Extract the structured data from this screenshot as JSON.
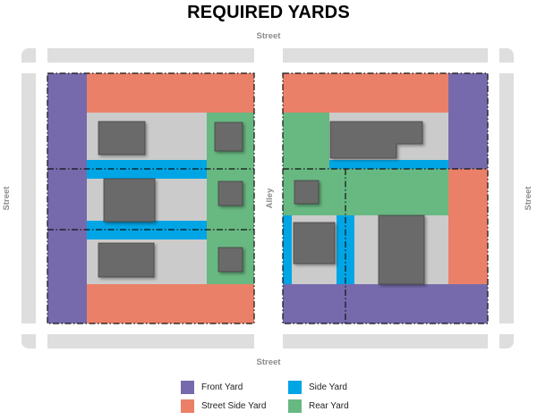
{
  "title": "REQUIRED YARDS",
  "labels": {
    "street_top": "Street",
    "street_bottom": "Street",
    "street_left": "Street",
    "street_right": "Street",
    "alley": "Alley"
  },
  "colors": {
    "front_yard": "#766aac",
    "street_side_yard": "#ea8068",
    "side_yard": "#00a5e6",
    "rear_yard": "#68b882",
    "lot_gray": "#cbcbcb",
    "building": "#6a6a6a",
    "street": "#dedede"
  },
  "legend": [
    {
      "label": "Front Yard",
      "color": "#766aac"
    },
    {
      "label": "Side Yard",
      "color": "#00a5e6"
    },
    {
      "label": "Street Side Yard",
      "color": "#ea8068"
    },
    {
      "label": "Rear Yard",
      "color": "#68b882"
    }
  ]
}
